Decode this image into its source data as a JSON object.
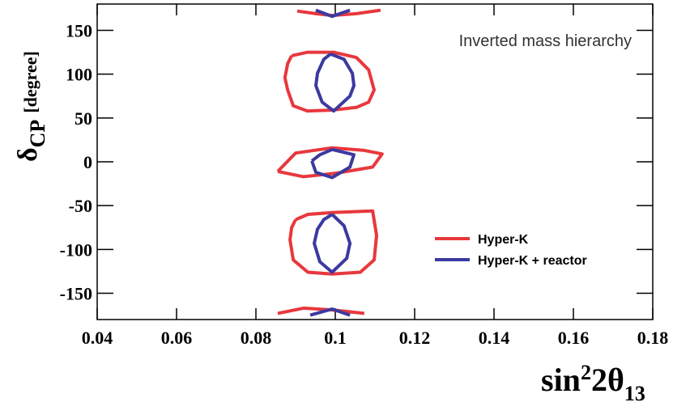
{
  "chart_data": {
    "type": "contour",
    "annotation": "Inverted mass hierarchy",
    "xlabel": {
      "base": "sin",
      "sup": "2",
      "mid": "2θ",
      "sub": "13"
    },
    "ylabel": {
      "base": "δ",
      "sub": "CP",
      "unit": "[degree]"
    },
    "xlim": [
      0.04,
      0.18
    ],
    "xticks": [
      0.04,
      0.06,
      0.08,
      0.1,
      0.12,
      0.14,
      0.16,
      0.18
    ],
    "ylim": [
      -180,
      180
    ],
    "yticks": [
      -150,
      -100,
      -50,
      0,
      50,
      100,
      150
    ],
    "legend": "lower right",
    "series": [
      {
        "name": "Hyper-K",
        "color": "#e8383d",
        "contours": [
          {
            "x": [
              0.089,
              0.093,
              0.0996,
              0.1053,
              0.1084,
              0.1098,
              0.1084,
              0.1053,
              0.0992,
              0.093,
              0.0894,
              0.088,
              0.0873,
              0.088,
              0.089
            ],
            "y": [
              121,
              125,
              125,
              119,
              105,
              82,
              68,
              62,
              59,
              58,
              64,
              82,
              96,
              112,
              121
            ]
          },
          {
            "x": [
              0.0855,
              0.09,
              0.0992,
              0.1073,
              0.1118,
              0.1094,
              0.1002,
              0.092,
              0.0855
            ],
            "y": [
              -11,
              10,
              16,
              13,
              9,
              -6,
              -13,
              -17,
              -11
            ]
          },
          {
            "x": [
              0.09,
              0.0931,
              0.0992,
              0.1094,
              0.1104,
              0.1098,
              0.1063,
              0.0992,
              0.0931,
              0.0894,
              0.0886,
              0.089,
              0.09
            ],
            "y": [
              -66,
              -60,
              -58,
              -56,
              -84,
              -112,
              -126,
              -128,
              -126,
              -112,
              -89,
              -75,
              -66
            ]
          },
          {
            "x": [
              0.0904,
              0.0951,
              0.0992,
              0.1053,
              0.1114
            ],
            "y": [
              172,
              169,
              167,
              169,
              173
            ]
          },
          {
            "x": [
              0.0855,
              0.092,
              0.0992,
              0.1073
            ],
            "y": [
              -173,
              -167,
              -169,
              -173
            ]
          }
        ]
      },
      {
        "name": "Hyper-K + reactor",
        "color": "#3b3aa0",
        "contours": [
          {
            "x": [
              0.0988,
              0.1022,
              0.1043,
              0.1047,
              0.1037,
              0.0996,
              0.0967,
              0.0951,
              0.0955,
              0.0971,
              0.0988
            ],
            "y": [
              123,
              117,
              101,
              87,
              75,
              58,
              68,
              87,
              101,
              117,
              123
            ]
          },
          {
            "x": [
              0.0941,
              0.0961,
              0.0992,
              0.1047,
              0.1037,
              0.0992,
              0.0951,
              0.0941
            ],
            "y": [
              1,
              8,
              14,
              8,
              -6,
              -18,
              -12,
              1
            ]
          },
          {
            "x": [
              0.0992,
              0.1022,
              0.1037,
              0.1029,
              0.0992,
              0.0961,
              0.0947,
              0.0955,
              0.0971,
              0.0992
            ],
            "y": [
              -60,
              -73,
              -93,
              -110,
              -126,
              -114,
              -93,
              -77,
              -66,
              -60
            ]
          },
          {
            "x": [
              0.0951,
              0.0992,
              0.1037
            ],
            "y": [
              173,
              166,
              173
            ]
          },
          {
            "x": [
              0.0937,
              0.0992,
              0.1037
            ],
            "y": [
              -175,
              -168,
              -175
            ]
          }
        ]
      }
    ]
  }
}
